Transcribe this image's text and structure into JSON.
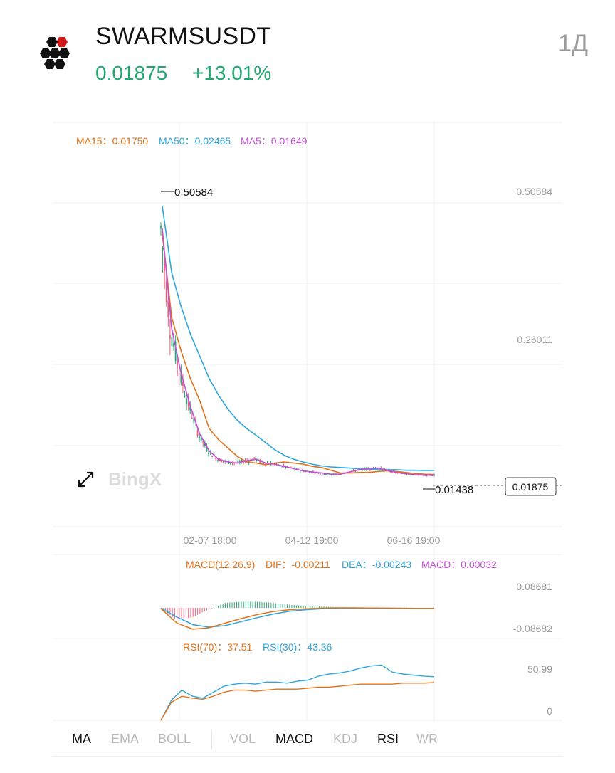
{
  "header": {
    "symbol": "SWARMSUSDT",
    "price": "0.01875",
    "change": "+13.01%",
    "interval": "1Д"
  },
  "colors": {
    "up": "#21a871",
    "down": "#ef5d7a",
    "ma15": "#e0731c",
    "ma50": "#2ea6dc",
    "ma5": "#c54fd6",
    "grid": "#f0f0f0",
    "axis_text": "#9c9c9c"
  },
  "legend": {
    "ma15": "MA15：0.01750",
    "ma50": "MA50：0.02465",
    "ma5": "MA5：0.01649"
  },
  "macd_legend": {
    "label": "MACD(12,26,9)",
    "dif": "DIF：-0.00211",
    "dea": "DEA：-0.00243",
    "macd": "MACD：0.00032"
  },
  "rsi_legend": {
    "rsi70": "RSI(70)：37.51",
    "rsi30": "RSI(30)：43.36"
  },
  "watermark": "BingX",
  "icons": [
    "expand-icon",
    "swarms-logo"
  ],
  "tabs": [
    {
      "label": "MA",
      "active": true
    },
    {
      "label": "EMA",
      "active": false
    },
    {
      "label": "BOLL",
      "active": false
    },
    {
      "label": "VOL",
      "active": false
    },
    {
      "label": "MACD",
      "active": true
    },
    {
      "label": "KDJ",
      "active": false
    },
    {
      "label": "RSI",
      "active": true
    },
    {
      "label": "WR",
      "active": false
    }
  ],
  "chart_data": [
    {
      "type": "candlestick",
      "x_ticks": [
        "02-07 18:00",
        "04-12 19:00",
        "06-16 19:00"
      ],
      "y_ticks": [
        "0.50584",
        "0.26011"
      ],
      "high_label": "0.50584",
      "low_label": "0.01438",
      "last_price_label": "0.01875",
      "ylim": [
        -0.02,
        0.53
      ],
      "series": [
        {
          "name": "MA15",
          "values": [
            0.45,
            0.3,
            0.24,
            0.19,
            0.15,
            0.1,
            0.08,
            0.065,
            0.05,
            0.04,
            0.038,
            0.035,
            0.038,
            0.04,
            0.038,
            0.036,
            0.032,
            0.03,
            0.025,
            0.02,
            0.02,
            0.021,
            0.021,
            0.023,
            0.024,
            0.023,
            0.021,
            0.019,
            0.018,
            0.0175
          ]
        },
        {
          "name": "MA50",
          "values": [
            0.5,
            0.38,
            0.32,
            0.27,
            0.23,
            0.19,
            0.16,
            0.135,
            0.115,
            0.1,
            0.088,
            0.075,
            0.062,
            0.052,
            0.045,
            0.04,
            0.036,
            0.033,
            0.031,
            0.03,
            0.029,
            0.028,
            0.027,
            0.026,
            0.026,
            0.026,
            0.025,
            0.025,
            0.0248,
            0.02465
          ]
        },
        {
          "name": "MA5",
          "values": [
            0.46,
            0.28,
            0.2,
            0.14,
            0.09,
            0.06,
            0.045,
            0.04,
            0.038,
            0.042,
            0.045,
            0.038,
            0.036,
            0.032,
            0.028,
            0.024,
            0.022,
            0.02,
            0.018,
            0.018,
            0.022,
            0.026,
            0.028,
            0.029,
            0.025,
            0.021,
            0.019,
            0.017,
            0.016,
            0.01649
          ]
        }
      ]
    },
    {
      "type": "line",
      "name": "MACD(12,26,9)",
      "y_ticks": [
        "0.08681",
        "-0.08682"
      ],
      "ylim": [
        -0.08682,
        0.08681
      ],
      "series": [
        {
          "name": "DIF",
          "values": [
            -0.002,
            -0.05,
            -0.07,
            -0.065,
            -0.05,
            -0.035,
            -0.022,
            -0.012,
            -0.006,
            -0.003,
            -0.001,
            0.0,
            0.0,
            -0.0005,
            -0.001,
            -0.0015,
            -0.002,
            -0.00211
          ]
        },
        {
          "name": "DEA",
          "values": [
            -0.001,
            -0.03,
            -0.055,
            -0.063,
            -0.058,
            -0.045,
            -0.032,
            -0.02,
            -0.011,
            -0.006,
            -0.003,
            -0.001,
            -0.0005,
            -0.001,
            -0.0015,
            -0.002,
            -0.0023,
            -0.00243
          ]
        }
      ]
    },
    {
      "type": "line",
      "name": "RSI",
      "y_ticks": [
        "50.99",
        "0"
      ],
      "ylim": [
        0,
        70
      ],
      "series": [
        {
          "name": "RSI(70)",
          "values": [
            0,
            18,
            24,
            22,
            21,
            24,
            28,
            30,
            30,
            29,
            30,
            31,
            31,
            31,
            32,
            33,
            33,
            34,
            35,
            36,
            36,
            36,
            36,
            37,
            37,
            37,
            37.51
          ]
        },
        {
          "name": "RSI(30)",
          "values": [
            0,
            20,
            30,
            24,
            22,
            28,
            34,
            36,
            37,
            36,
            38,
            38,
            37,
            39,
            40,
            44,
            46,
            47,
            49,
            52,
            54,
            55,
            48,
            46,
            45,
            44,
            43.36
          ]
        }
      ]
    }
  ]
}
